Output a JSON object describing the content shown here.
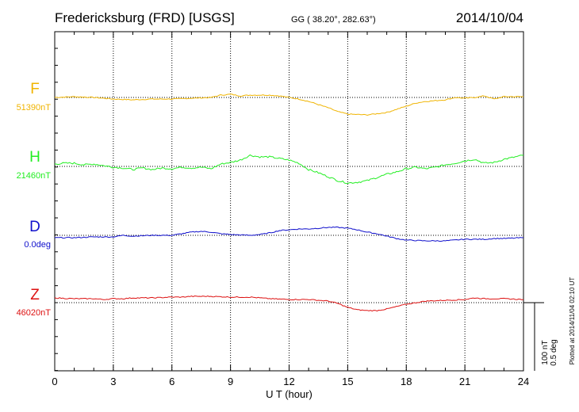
{
  "header": {
    "station": "Fredericksburg (FRD)  [USGS]",
    "coords": "GG ( 38.20°, 282.63°)",
    "date": "2014/10/04"
  },
  "footer": {
    "plotted": "Plotted at 2014/11/04 02:10 UT"
  },
  "chart_data": {
    "type": "line",
    "xlabel": "U T (hour)",
    "x_ticks": [
      0,
      3,
      6,
      9,
      12,
      15,
      18,
      21,
      24
    ],
    "xlim": [
      0,
      24
    ],
    "grid": true,
    "scale_bar": {
      "label_1": "100 nT",
      "label_2": "0.5 deg"
    },
    "series": [
      {
        "name": "F",
        "baseline_label": "51390nT",
        "color": "#f0b400",
        "points": [
          [
            0,
            0
          ],
          [
            1,
            1
          ],
          [
            2,
            0
          ],
          [
            3,
            -2
          ],
          [
            4,
            -3
          ],
          [
            5,
            -2
          ],
          [
            6,
            -2
          ],
          [
            7,
            -1
          ],
          [
            8,
            0
          ],
          [
            8.5,
            3
          ],
          [
            9,
            4
          ],
          [
            9.5,
            2
          ],
          [
            10,
            3
          ],
          [
            11,
            3
          ],
          [
            11.5,
            2
          ],
          [
            12,
            0
          ],
          [
            12.5,
            -2
          ],
          [
            13,
            -5
          ],
          [
            13.5,
            -9
          ],
          [
            14,
            -13
          ],
          [
            14.5,
            -18
          ],
          [
            15,
            -21
          ],
          [
            16,
            -22
          ],
          [
            17,
            -19
          ],
          [
            17.5,
            -15
          ],
          [
            18,
            -11
          ],
          [
            18.5,
            -7
          ],
          [
            19,
            -5
          ],
          [
            20,
            -3
          ],
          [
            20.5,
            0
          ],
          [
            21,
            -1
          ],
          [
            21.5,
            0
          ],
          [
            22,
            2
          ],
          [
            22.5,
            -2
          ],
          [
            23,
            1
          ],
          [
            24,
            1
          ]
        ]
      },
      {
        "name": "H",
        "baseline_label": "21460nT",
        "color": "#22ee22",
        "points": [
          [
            0,
            3
          ],
          [
            0.5,
            4
          ],
          [
            1,
            4
          ],
          [
            1.5,
            2
          ],
          [
            2,
            3
          ],
          [
            3,
            -1
          ],
          [
            3.5,
            -2
          ],
          [
            4,
            -4
          ],
          [
            4.5,
            -2
          ],
          [
            5,
            -4
          ],
          [
            5.5,
            -2
          ],
          [
            6,
            -3
          ],
          [
            6.5,
            -1
          ],
          [
            7,
            -2
          ],
          [
            7.5,
            -1
          ],
          [
            8,
            -3
          ],
          [
            8.5,
            3
          ],
          [
            9,
            5
          ],
          [
            9.5,
            8
          ],
          [
            10,
            14
          ],
          [
            10.5,
            12
          ],
          [
            11,
            12
          ],
          [
            11.5,
            10
          ],
          [
            12,
            8
          ],
          [
            12.5,
            4
          ],
          [
            13,
            -4
          ],
          [
            13.5,
            -8
          ],
          [
            14,
            -13
          ],
          [
            14.5,
            -18
          ],
          [
            15,
            -21
          ],
          [
            15.5,
            -20
          ],
          [
            16,
            -18
          ],
          [
            16.5,
            -14
          ],
          [
            17,
            -10
          ],
          [
            17.5,
            -7
          ],
          [
            18,
            -3
          ],
          [
            18.5,
            -1
          ],
          [
            19,
            -3
          ],
          [
            19.5,
            -1
          ],
          [
            20,
            2
          ],
          [
            20.5,
            4
          ],
          [
            21,
            7
          ],
          [
            21.5,
            9
          ],
          [
            22,
            4
          ],
          [
            22.5,
            5
          ],
          [
            23,
            9
          ],
          [
            24,
            14
          ]
        ]
      },
      {
        "name": "D",
        "baseline_label": "0.0deg",
        "color": "#1010cc",
        "points": [
          [
            0,
            -3
          ],
          [
            1,
            -3
          ],
          [
            2,
            -2
          ],
          [
            3,
            -2
          ],
          [
            3.5,
            0
          ],
          [
            4,
            -1
          ],
          [
            5,
            0
          ],
          [
            6,
            0
          ],
          [
            6.5,
            2
          ],
          [
            7,
            4
          ],
          [
            7.5,
            5
          ],
          [
            8,
            4
          ],
          [
            8.5,
            2
          ],
          [
            9,
            1
          ],
          [
            10,
            0
          ],
          [
            10.5,
            1
          ],
          [
            11,
            3
          ],
          [
            11.5,
            6
          ],
          [
            12,
            7
          ],
          [
            12.5,
            8
          ],
          [
            13,
            8
          ],
          [
            13.5,
            9
          ],
          [
            14,
            10
          ],
          [
            14.5,
            10
          ],
          [
            15,
            9
          ],
          [
            15.5,
            7
          ],
          [
            16,
            4
          ],
          [
            16.5,
            2
          ],
          [
            17,
            -1
          ],
          [
            17.5,
            -4
          ],
          [
            18,
            -6
          ],
          [
            19,
            -7
          ],
          [
            20,
            -7
          ],
          [
            20.5,
            -6
          ],
          [
            21,
            -5
          ],
          [
            22,
            -5
          ],
          [
            22.5,
            -4
          ],
          [
            23,
            -4
          ],
          [
            24,
            -3
          ]
        ]
      },
      {
        "name": "Z",
        "baseline_label": "46020nT",
        "color": "#dd1111",
        "points": [
          [
            0,
            6
          ],
          [
            1,
            5
          ],
          [
            2,
            5
          ],
          [
            2.5,
            4
          ],
          [
            3,
            5
          ],
          [
            3.5,
            5
          ],
          [
            4,
            6
          ],
          [
            5,
            6
          ],
          [
            6,
            7
          ],
          [
            6.5,
            7
          ],
          [
            7,
            8
          ],
          [
            8,
            8
          ],
          [
            9,
            7
          ],
          [
            10,
            7
          ],
          [
            11,
            5
          ],
          [
            12,
            4
          ],
          [
            13,
            4
          ],
          [
            14,
            2
          ],
          [
            14.5,
            -1
          ],
          [
            15,
            -6
          ],
          [
            15.5,
            -9
          ],
          [
            16,
            -10
          ],
          [
            16.5,
            -10
          ],
          [
            17,
            -8
          ],
          [
            17.5,
            -5
          ],
          [
            18,
            -2
          ],
          [
            18.5,
            0
          ],
          [
            19,
            2
          ],
          [
            20,
            3
          ],
          [
            21,
            4
          ],
          [
            21.5,
            6
          ],
          [
            22,
            5
          ],
          [
            23,
            5
          ],
          [
            24,
            4
          ]
        ]
      }
    ]
  }
}
